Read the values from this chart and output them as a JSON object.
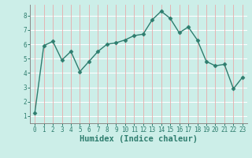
{
  "xlabel": "Humidex (Indice chaleur)",
  "x_values": [
    0,
    1,
    2,
    3,
    4,
    5,
    6,
    7,
    8,
    9,
    10,
    11,
    12,
    13,
    14,
    15,
    16,
    17,
    18,
    19,
    20,
    21,
    22,
    23
  ],
  "y_values": [
    1.2,
    5.9,
    6.2,
    4.9,
    5.5,
    4.1,
    4.8,
    5.5,
    6.0,
    6.1,
    6.3,
    6.6,
    6.7,
    7.7,
    8.3,
    7.8,
    6.8,
    7.2,
    6.3,
    4.8,
    4.5,
    4.6,
    2.9,
    3.7
  ],
  "line_color": "#2e7d6e",
  "marker": "D",
  "marker_size": 2.5,
  "bg_color": "#cceee8",
  "hgrid_color": "#ffffff",
  "vgrid_color": "#e8aaaa",
  "ylim": [
    0.5,
    8.75
  ],
  "xlim": [
    -0.5,
    23.5
  ],
  "yticks": [
    1,
    2,
    3,
    4,
    5,
    6,
    7,
    8
  ],
  "xticks": [
    0,
    1,
    2,
    3,
    4,
    5,
    6,
    7,
    8,
    9,
    10,
    11,
    12,
    13,
    14,
    15,
    16,
    17,
    18,
    19,
    20,
    21,
    22,
    23
  ],
  "tick_label_fontsize": 5.5,
  "xlabel_fontsize": 7.5,
  "line_width": 1.0
}
